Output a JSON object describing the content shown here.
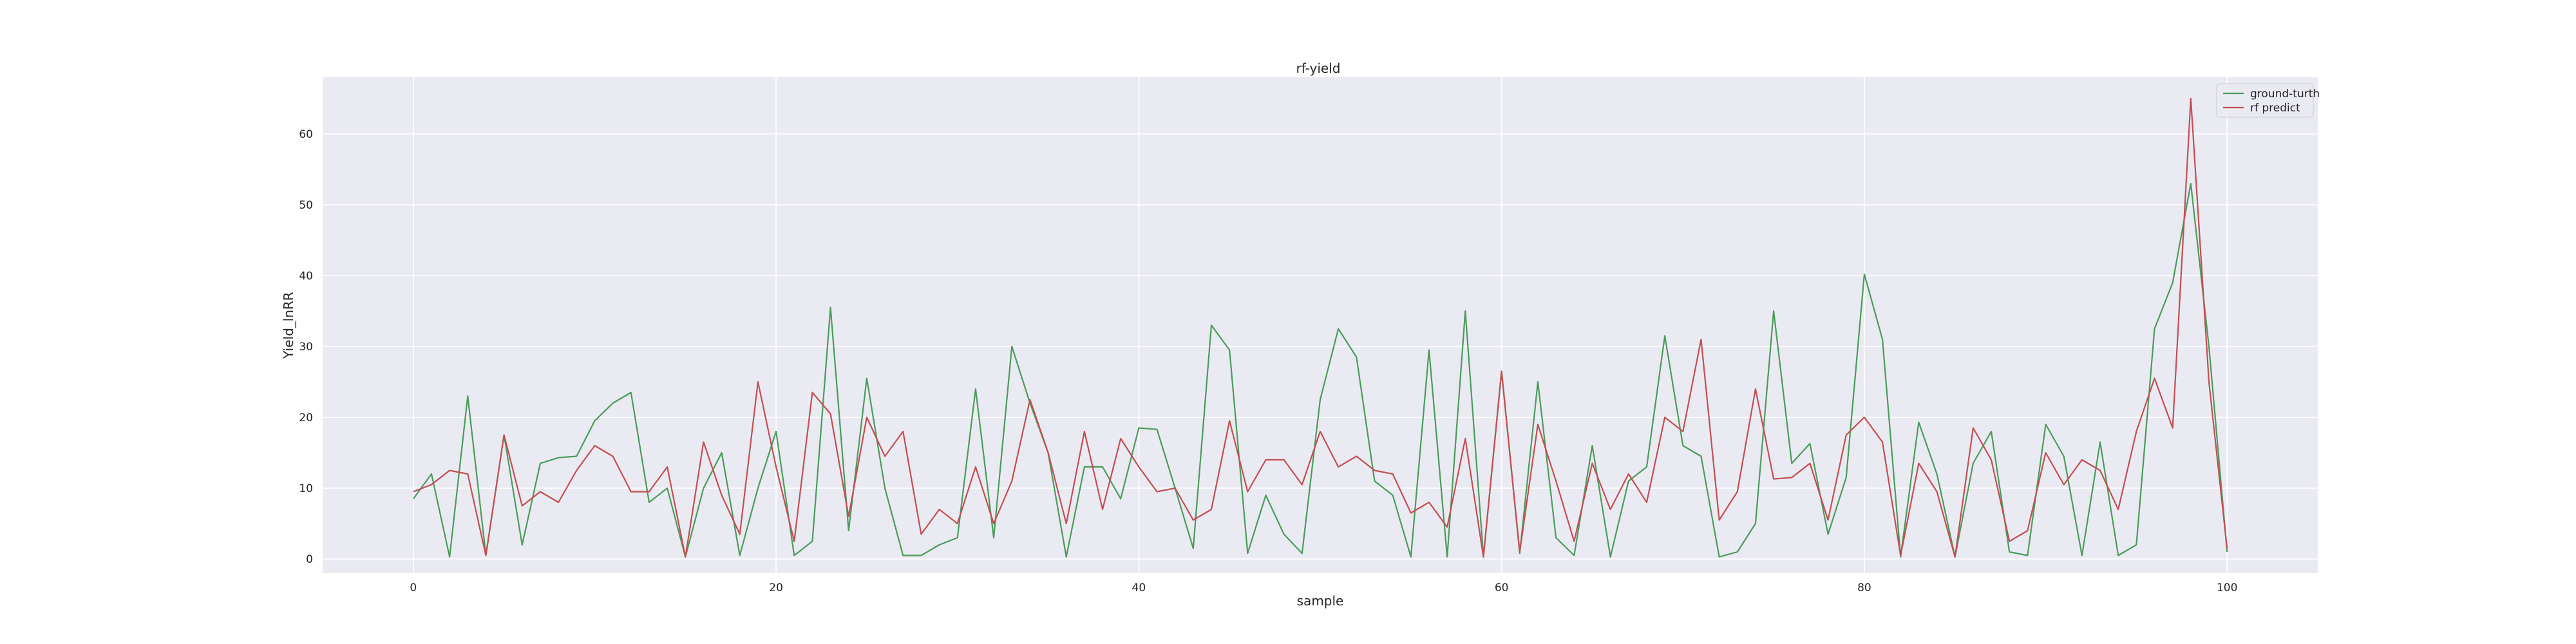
{
  "chart_data": {
    "type": "line",
    "title": "rf-yield",
    "xlabel": "sample",
    "ylabel": "Yield_lnRR",
    "xlim": [
      -5,
      105
    ],
    "ylim": [
      -2,
      68
    ],
    "xticks": [
      0,
      20,
      40,
      60,
      80,
      100
    ],
    "yticks": [
      0,
      10,
      20,
      30,
      40,
      50,
      60
    ],
    "grid": true,
    "legend_position": "top-right",
    "background": "#eaeaf2",
    "x": [
      0,
      1,
      2,
      3,
      4,
      5,
      6,
      7,
      8,
      9,
      10,
      11,
      12,
      13,
      14,
      15,
      16,
      17,
      18,
      19,
      20,
      21,
      22,
      23,
      24,
      25,
      26,
      27,
      28,
      29,
      30,
      31,
      32,
      33,
      34,
      35,
      36,
      37,
      38,
      39,
      40,
      41,
      42,
      43,
      44,
      45,
      46,
      47,
      48,
      49,
      50,
      51,
      52,
      53,
      54,
      55,
      56,
      57,
      58,
      59,
      60,
      61,
      62,
      63,
      64,
      65,
      66,
      67,
      68,
      69,
      70,
      71,
      72,
      73,
      74,
      75,
      76,
      77,
      78,
      79,
      80,
      81,
      82,
      83,
      84,
      85,
      86,
      87,
      88,
      89,
      90,
      91,
      92,
      93,
      94,
      95,
      96,
      97,
      98,
      99,
      100
    ],
    "series": [
      {
        "name": "ground-turth",
        "color": "#4a9c5a",
        "values": [
          8.5,
          12,
          0.3,
          23,
          0.5,
          17.5,
          2,
          13.5,
          14.3,
          14.5,
          19.5,
          22,
          23.5,
          8,
          10,
          0.3,
          10,
          15,
          0.5,
          10,
          18,
          0.5,
          2.5,
          35.5,
          4,
          25.5,
          10,
          0.5,
          0.5,
          2,
          3,
          24,
          3,
          30,
          22,
          15,
          0.3,
          13,
          13,
          8.5,
          18.5,
          18.3,
          10,
          1.5,
          33,
          29.5,
          0.8,
          9,
          3.5,
          0.8,
          22.5,
          32.5,
          28.5,
          11,
          9,
          0.3,
          29.5,
          0.3,
          35,
          0.3,
          26.5,
          0.8,
          25,
          3,
          0.5,
          16,
          0.3,
          11,
          13,
          31.5,
          16,
          14.5,
          0.3,
          1,
          5,
          35,
          13.5,
          16.3,
          3.5,
          11.5,
          40.2,
          31,
          0.3,
          19.3,
          12,
          0.3,
          13.5,
          18,
          1,
          0.5,
          19,
          14.5,
          0.5,
          16.5,
          0.5,
          2,
          32.5,
          39,
          53,
          30,
          1
        ]
      },
      {
        "name": "rf predict",
        "color": "#c44e52",
        "values": [
          9.5,
          10.5,
          12.5,
          12,
          0.5,
          17.5,
          7.5,
          9.5,
          8,
          12.5,
          16,
          14.5,
          9.5,
          9.5,
          13,
          0.3,
          16.5,
          9,
          3.5,
          25,
          13,
          2.5,
          23.5,
          20.5,
          6,
          20,
          14.5,
          18,
          3.5,
          7,
          5,
          13,
          5,
          11,
          22.5,
          15,
          5,
          18,
          7,
          17,
          13,
          9.5,
          10,
          5.5,
          7,
          19.5,
          9.5,
          14,
          14,
          10.5,
          18,
          13,
          14.5,
          12.5,
          12,
          6.5,
          8,
          4.5,
          17,
          0.3,
          26.5,
          1,
          19,
          11,
          2.5,
          13.5,
          7,
          12,
          8,
          20,
          18,
          31,
          5.5,
          9.5,
          24,
          11.3,
          11.5,
          13.5,
          5.5,
          17.5,
          20,
          16.5,
          0.5,
          13.5,
          9.5,
          0.3,
          18.5,
          14,
          2.5,
          4,
          15,
          10.5,
          14,
          12.5,
          7,
          18,
          25.5,
          18.5,
          65,
          25,
          1.5
        ]
      }
    ]
  }
}
